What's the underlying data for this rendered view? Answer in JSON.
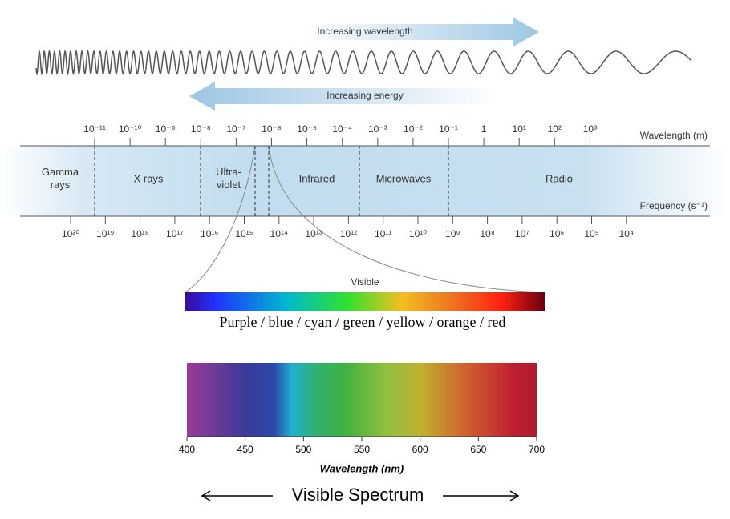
{
  "header": {
    "wavelength_arrow": "Increasing wavelength",
    "energy_arrow": "Increasing energy"
  },
  "spectrum": {
    "wavelength_title": "Wavelength (m)",
    "wavelength_ticks": [
      "10⁻¹¹",
      "10⁻¹⁰",
      "10⁻⁹",
      "10⁻⁸",
      "10⁻⁷",
      "10⁻⁶",
      "10⁻⁵",
      "10⁻⁴",
      "10⁻³",
      "10⁻²",
      "10⁻¹",
      "1",
      "10¹",
      "10²",
      "10³"
    ],
    "bands": [
      {
        "label": "Gamma rays"
      },
      {
        "label": "X rays"
      },
      {
        "label": "Ultra-violet"
      },
      {
        "label": "Infrared"
      },
      {
        "label": "Microwaves"
      },
      {
        "label": "Radio"
      }
    ],
    "frequency_title": "Frequency (s⁻¹)",
    "frequency_ticks": [
      "10²⁰",
      "10¹⁹",
      "10¹⁸",
      "10¹⁷",
      "10¹⁶",
      "10¹⁵",
      "10¹⁴",
      "10¹³",
      "10¹²",
      "10¹¹",
      "10¹⁰",
      "10⁹",
      "10⁸",
      "10⁷",
      "10⁶",
      "10⁵",
      "10⁴"
    ]
  },
  "visible": {
    "label": "Visible",
    "caption": "Purple / blue / cyan / green / yellow / orange / red"
  },
  "visible_spectrum": {
    "ticks": [
      400,
      450,
      500,
      550,
      600,
      650,
      700
    ],
    "axis_title": "Wavelength (nm)",
    "title": "Visible Spectrum"
  }
}
